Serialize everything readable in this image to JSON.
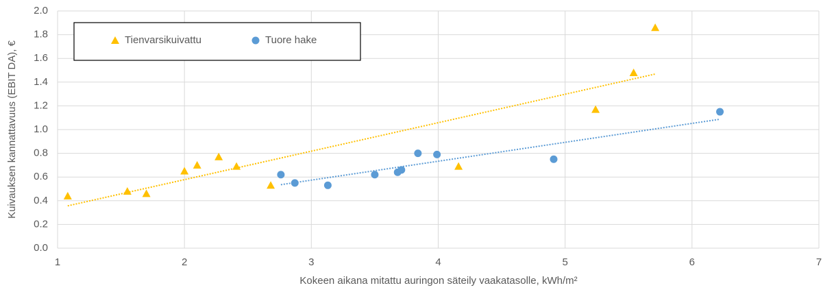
{
  "chart_data": {
    "type": "scatter",
    "xlabel": "Kokeen aikana mitattu auringon säteily vaakatasolle, kWh/m²",
    "ylabel": "Kuivauksen kannattavuus (EBIT DA), €",
    "xlim": [
      1,
      7
    ],
    "xticks": [
      1,
      2,
      3,
      4,
      5,
      6,
      7
    ],
    "ylim": [
      0,
      2
    ],
    "yticks": [
      {
        "value": 0,
        "label": "0.0"
      },
      0.2,
      0.4,
      0.6,
      0.8,
      {
        "value": 1,
        "label": "1.0"
      },
      1.2,
      1.4,
      1.6,
      1.8,
      {
        "value": 2,
        "label": "2.0"
      }
    ],
    "grid": true,
    "legend": "top-left",
    "trendline": "linear",
    "series": [
      {
        "name": "Tienvarsikuivattu",
        "color": "#ffc000",
        "marker": "triangle",
        "x": [
          1.08,
          1.55,
          1.7,
          2.0,
          2.1,
          2.27,
          2.41,
          2.68,
          4.16,
          5.24,
          5.54,
          5.71
        ],
        "values": [
          0.44,
          0.48,
          0.46,
          0.65,
          0.7,
          0.77,
          0.69,
          0.53,
          0.69,
          1.17,
          1.48,
          1.86
        ]
      },
      {
        "name": "Tuore hake",
        "color": "#5b9bd5",
        "marker": "circle",
        "x": [
          2.76,
          2.87,
          3.13,
          3.5,
          3.68,
          3.71,
          3.84,
          3.99,
          4.91,
          6.22
        ],
        "values": [
          0.62,
          0.55,
          0.53,
          0.62,
          0.64,
          0.66,
          0.8,
          0.79,
          0.75,
          1.15
        ]
      }
    ]
  }
}
